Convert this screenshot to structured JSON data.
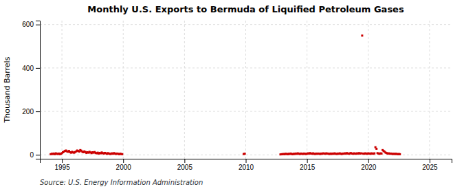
{
  "chart_data": {
    "type": "scatter",
    "title": "Monthly U.S. Exports to Bermuda of Liquified Petroleum Gases",
    "ylabel": "Thousand Barrels",
    "annotations": [
      "Source: U.S. Energy Information Administration"
    ],
    "xlim": [
      1993.2,
      2026.8
    ],
    "ylim": [
      -18,
      618
    ],
    "xticks": [
      1995,
      2000,
      2005,
      2010,
      2015,
      2020,
      2025
    ],
    "yticks": [
      0,
      200,
      400,
      600
    ],
    "grid": true,
    "color": "#cc0000",
    "marker": "square",
    "x": [
      1994.08,
      1994.17,
      1994.25,
      1994.33,
      1994.42,
      1994.5,
      1994.58,
      1994.67,
      1994.75,
      1994.83,
      1994.92,
      1995.0,
      1995.08,
      1995.17,
      1995.25,
      1995.33,
      1995.42,
      1995.5,
      1995.58,
      1995.67,
      1995.75,
      1995.83,
      1995.92,
      1996.0,
      1996.08,
      1996.17,
      1996.25,
      1996.33,
      1996.42,
      1996.5,
      1996.58,
      1996.67,
      1996.75,
      1996.83,
      1996.92,
      1997.0,
      1997.08,
      1997.17,
      1997.25,
      1997.33,
      1997.42,
      1997.5,
      1997.58,
      1997.67,
      1997.75,
      1997.83,
      1997.92,
      1998.0,
      1998.08,
      1998.17,
      1998.25,
      1998.33,
      1998.42,
      1998.5,
      1998.58,
      1998.67,
      1998.75,
      1998.83,
      1998.92,
      1999.0,
      1999.08,
      1999.17,
      1999.25,
      1999.33,
      1999.42,
      1999.5,
      1999.58,
      1999.67,
      1999.75,
      1999.83,
      1999.92,
      2009.83,
      2009.92,
      2012.83,
      2012.92,
      2013.0,
      2013.08,
      2013.17,
      2013.25,
      2013.33,
      2013.42,
      2013.5,
      2013.58,
      2013.67,
      2013.75,
      2013.83,
      2013.92,
      2014.0,
      2014.08,
      2014.17,
      2014.25,
      2014.33,
      2014.42,
      2014.5,
      2014.58,
      2014.67,
      2014.75,
      2014.83,
      2014.92,
      2015.0,
      2015.08,
      2015.17,
      2015.25,
      2015.33,
      2015.42,
      2015.5,
      2015.58,
      2015.67,
      2015.75,
      2015.83,
      2015.92,
      2016.0,
      2016.08,
      2016.17,
      2016.25,
      2016.33,
      2016.42,
      2016.5,
      2016.58,
      2016.67,
      2016.75,
      2016.83,
      2016.92,
      2017.0,
      2017.08,
      2017.17,
      2017.25,
      2017.33,
      2017.42,
      2017.5,
      2017.58,
      2017.67,
      2017.75,
      2017.83,
      2017.92,
      2018.0,
      2018.08,
      2018.17,
      2018.25,
      2018.33,
      2018.42,
      2018.5,
      2018.58,
      2018.67,
      2018.75,
      2018.83,
      2018.92,
      2019.0,
      2019.08,
      2019.17,
      2019.25,
      2019.33,
      2019.42,
      2019.5,
      2019.58,
      2019.67,
      2019.75,
      2019.83,
      2019.92,
      2020.0,
      2020.08,
      2020.17,
      2020.25,
      2020.33,
      2020.42,
      2020.5,
      2020.58,
      2020.67,
      2020.75,
      2020.83,
      2020.92,
      2021.0,
      2021.08,
      2021.17,
      2021.25,
      2021.33,
      2021.42,
      2021.5,
      2021.58,
      2021.67,
      2021.75,
      2021.83,
      2021.92,
      2022.0,
      2022.08,
      2022.17,
      2022.25,
      2022.33,
      2022.42,
      2022.5,
      2022.58
    ],
    "values": [
      3,
      5,
      4,
      6,
      3,
      7,
      5,
      4,
      6,
      3,
      5,
      8,
      12,
      15,
      18,
      20,
      16,
      14,
      18,
      12,
      10,
      14,
      11,
      10,
      13,
      16,
      20,
      18,
      15,
      22,
      19,
      14,
      12,
      16,
      13,
      9,
      12,
      10,
      14,
      11,
      8,
      12,
      10,
      13,
      9,
      7,
      10,
      6,
      9,
      7,
      11,
      8,
      6,
      9,
      7,
      5,
      8,
      6,
      4,
      5,
      7,
      5,
      8,
      6,
      4,
      6,
      5,
      3,
      5,
      4,
      3,
      4,
      5,
      2,
      3,
      3,
      4,
      3,
      5,
      4,
      3,
      5,
      4,
      6,
      4,
      3,
      5,
      4,
      6,
      5,
      7,
      5,
      4,
      6,
      5,
      4,
      6,
      5,
      4,
      5,
      7,
      6,
      8,
      6,
      5,
      7,
      5,
      4,
      6,
      5,
      6,
      5,
      4,
      6,
      5,
      7,
      6,
      5,
      7,
      6,
      5,
      4,
      6,
      4,
      6,
      5,
      7,
      5,
      4,
      6,
      5,
      7,
      5,
      4,
      6,
      5,
      7,
      6,
      8,
      6,
      5,
      7,
      8,
      6,
      5,
      7,
      6,
      5,
      7,
      6,
      8,
      6,
      7,
      549,
      6,
      5,
      7,
      6,
      5,
      7,
      6,
      5,
      7,
      6,
      5,
      7,
      35,
      28,
      8,
      6,
      5,
      7,
      6,
      22,
      18,
      14,
      10,
      8,
      6,
      7,
      5,
      6,
      5,
      4,
      5,
      4,
      5,
      4,
      3,
      4,
      3
    ]
  }
}
